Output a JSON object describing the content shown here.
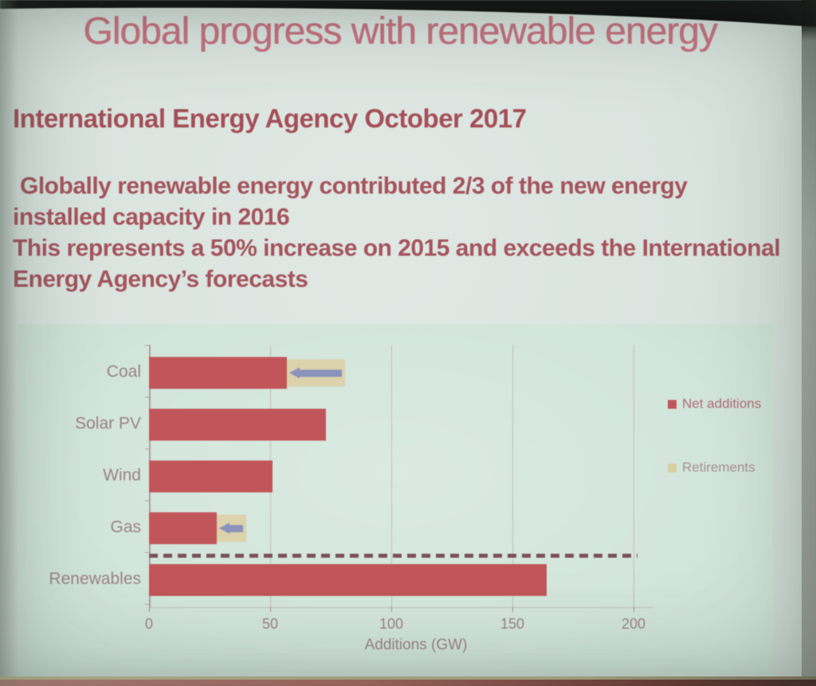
{
  "slide": {
    "title": "Global progress with renewable energy",
    "subtitle": "International Energy Agency October 2017",
    "body_lines": [
      "Globally renewable energy contributed 2/3 of the new energy",
      "installed capacity in 2016",
      "This represents a 50% increase on 2015 and exceeds the International",
      "Energy Agency’s forecasts"
    ]
  },
  "colors": {
    "title_text": "#c5717f",
    "heading_text": "#a44f58",
    "body_text": "#a5545d",
    "net_additions_bar": "#c1565a",
    "retirements_block": "#dcd2ab",
    "retirement_arrow": "#8a93bc",
    "dashed_line": "#7c515a",
    "axis_text": "#9c8289",
    "legend_net_additions_text": "#b26b76",
    "legend_retirements_text": "#a98f96"
  },
  "chart_data": {
    "type": "bar",
    "orientation": "horizontal",
    "title": "",
    "xlabel": "Additions (GW)",
    "ylabel": "",
    "categories": [
      "Coal",
      "Solar PV",
      "Wind",
      "Gas",
      "Renewables"
    ],
    "series": [
      {
        "name": "Net additions",
        "color": "#c1565a",
        "values": [
          57,
          73,
          51,
          28,
          164
        ]
      },
      {
        "name": "Retirements",
        "color": "#d8cfa0",
        "values": [
          24,
          0,
          0,
          12,
          0
        ]
      }
    ],
    "xticks": [
      0,
      50,
      100,
      150,
      200
    ],
    "xlim": [
      0,
      207
    ],
    "grid": "vertical-only",
    "legend_position": "right",
    "annotations": [
      "left-pointing arrows over tan blocks on Coal and Gas mark capacity retired (gross-to-net)",
      "dark dashed horizontal line spanning 0-200 GW separates Gas row from Renewables row"
    ]
  }
}
